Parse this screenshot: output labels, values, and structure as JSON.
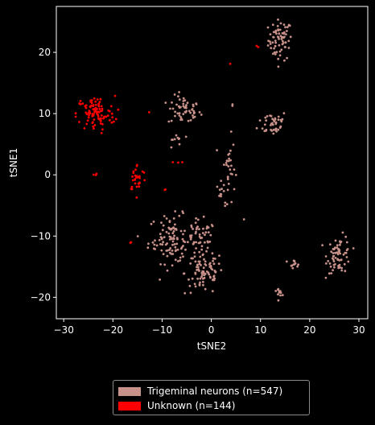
{
  "chart_data": {
    "type": "scatter",
    "xlabel": "tSNE2",
    "ylabel": "tSNE1",
    "xlim": [
      -31.5,
      31.8
    ],
    "ylim": [
      -23.5,
      27.5
    ],
    "xticks": [
      -30,
      -20,
      -10,
      0,
      10,
      20,
      30
    ],
    "yticks": [
      -20,
      -10,
      0,
      10,
      20
    ],
    "tick_labels_x": [
      "−30",
      "−20",
      "−10",
      "0",
      "10",
      "20",
      "30"
    ],
    "tick_labels_y": [
      "−20",
      "−10",
      "0",
      "10",
      "20"
    ],
    "legend_placement": "below",
    "background": "#000000",
    "series": [
      {
        "name": "Trigeminal neurons (n=547)",
        "color": "#c8918a",
        "clusters": [
          {
            "cx": 14.0,
            "cy": 22.0,
            "sx": 1.6,
            "sy": 2.2,
            "n": 70
          },
          {
            "cx": -5.5,
            "cy": 10.5,
            "sx": 2.2,
            "sy": 1.6,
            "n": 55
          },
          {
            "cx": 12.5,
            "cy": 8.5,
            "sx": 2.0,
            "sy": 1.4,
            "n": 40
          },
          {
            "cx": 3.5,
            "cy": 1.0,
            "sx": 0.9,
            "sy": 3.5,
            "n": 30
          },
          {
            "cx": 2.0,
            "cy": -3.0,
            "sx": 0.6,
            "sy": 1.2,
            "n": 10
          },
          {
            "cx": -8.0,
            "cy": -10.5,
            "sx": 3.2,
            "sy": 2.6,
            "n": 110
          },
          {
            "cx": -1.5,
            "cy": -16.0,
            "sx": 2.6,
            "sy": 2.4,
            "n": 85
          },
          {
            "cx": -2.0,
            "cy": -10.5,
            "sx": 2.0,
            "sy": 2.0,
            "n": 40
          },
          {
            "cx": 26.0,
            "cy": -13.0,
            "sx": 1.6,
            "sy": 2.0,
            "n": 70
          },
          {
            "cx": 16.5,
            "cy": -14.5,
            "sx": 1.2,
            "sy": 0.4,
            "n": 12
          },
          {
            "cx": 13.8,
            "cy": -19.0,
            "sx": 0.4,
            "sy": 0.5,
            "n": 12
          },
          {
            "cx": 6.5,
            "cy": -7.5,
            "sx": 0.3,
            "sy": 0.3,
            "n": 1
          },
          {
            "cx": 4.5,
            "cy": 11.0,
            "sx": 0.3,
            "sy": 0.3,
            "n": 2
          },
          {
            "cx": -7.5,
            "cy": 5.5,
            "sx": 1.0,
            "sy": 1.2,
            "n": 10
          }
        ]
      },
      {
        "name": "Unknown (n=144)",
        "color": "#ff0000",
        "clusters": [
          {
            "cx": -23.5,
            "cy": 10.0,
            "sx": 2.6,
            "sy": 1.9,
            "n": 100
          },
          {
            "cx": -15.0,
            "cy": -0.5,
            "sx": 1.2,
            "sy": 1.5,
            "n": 30
          },
          {
            "cx": -23.5,
            "cy": 0.0,
            "sx": 0.3,
            "sy": 0.4,
            "n": 3
          },
          {
            "cx": -16.5,
            "cy": -11.0,
            "sx": 0.2,
            "sy": 0.2,
            "n": 2
          },
          {
            "cx": -6.5,
            "cy": 2.0,
            "sx": 0.6,
            "sy": 0.4,
            "n": 3
          },
          {
            "cx": -9.5,
            "cy": -2.5,
            "sx": 0.3,
            "sy": 0.3,
            "n": 2
          },
          {
            "cx": 3.8,
            "cy": 18.0,
            "sx": 0.1,
            "sy": 0.1,
            "n": 1
          },
          {
            "cx": 9.2,
            "cy": 21.0,
            "sx": 0.3,
            "sy": 0.2,
            "n": 2
          },
          {
            "cx": -13.0,
            "cy": 10.0,
            "sx": 0.3,
            "sy": 0.3,
            "n": 1
          }
        ]
      }
    ]
  },
  "legend": {
    "items": [
      {
        "label": "Trigeminal neurons (n=547)",
        "color": "#c8918a"
      },
      {
        "label": "Unknown (n=144)",
        "color": "#ff0000"
      }
    ]
  }
}
